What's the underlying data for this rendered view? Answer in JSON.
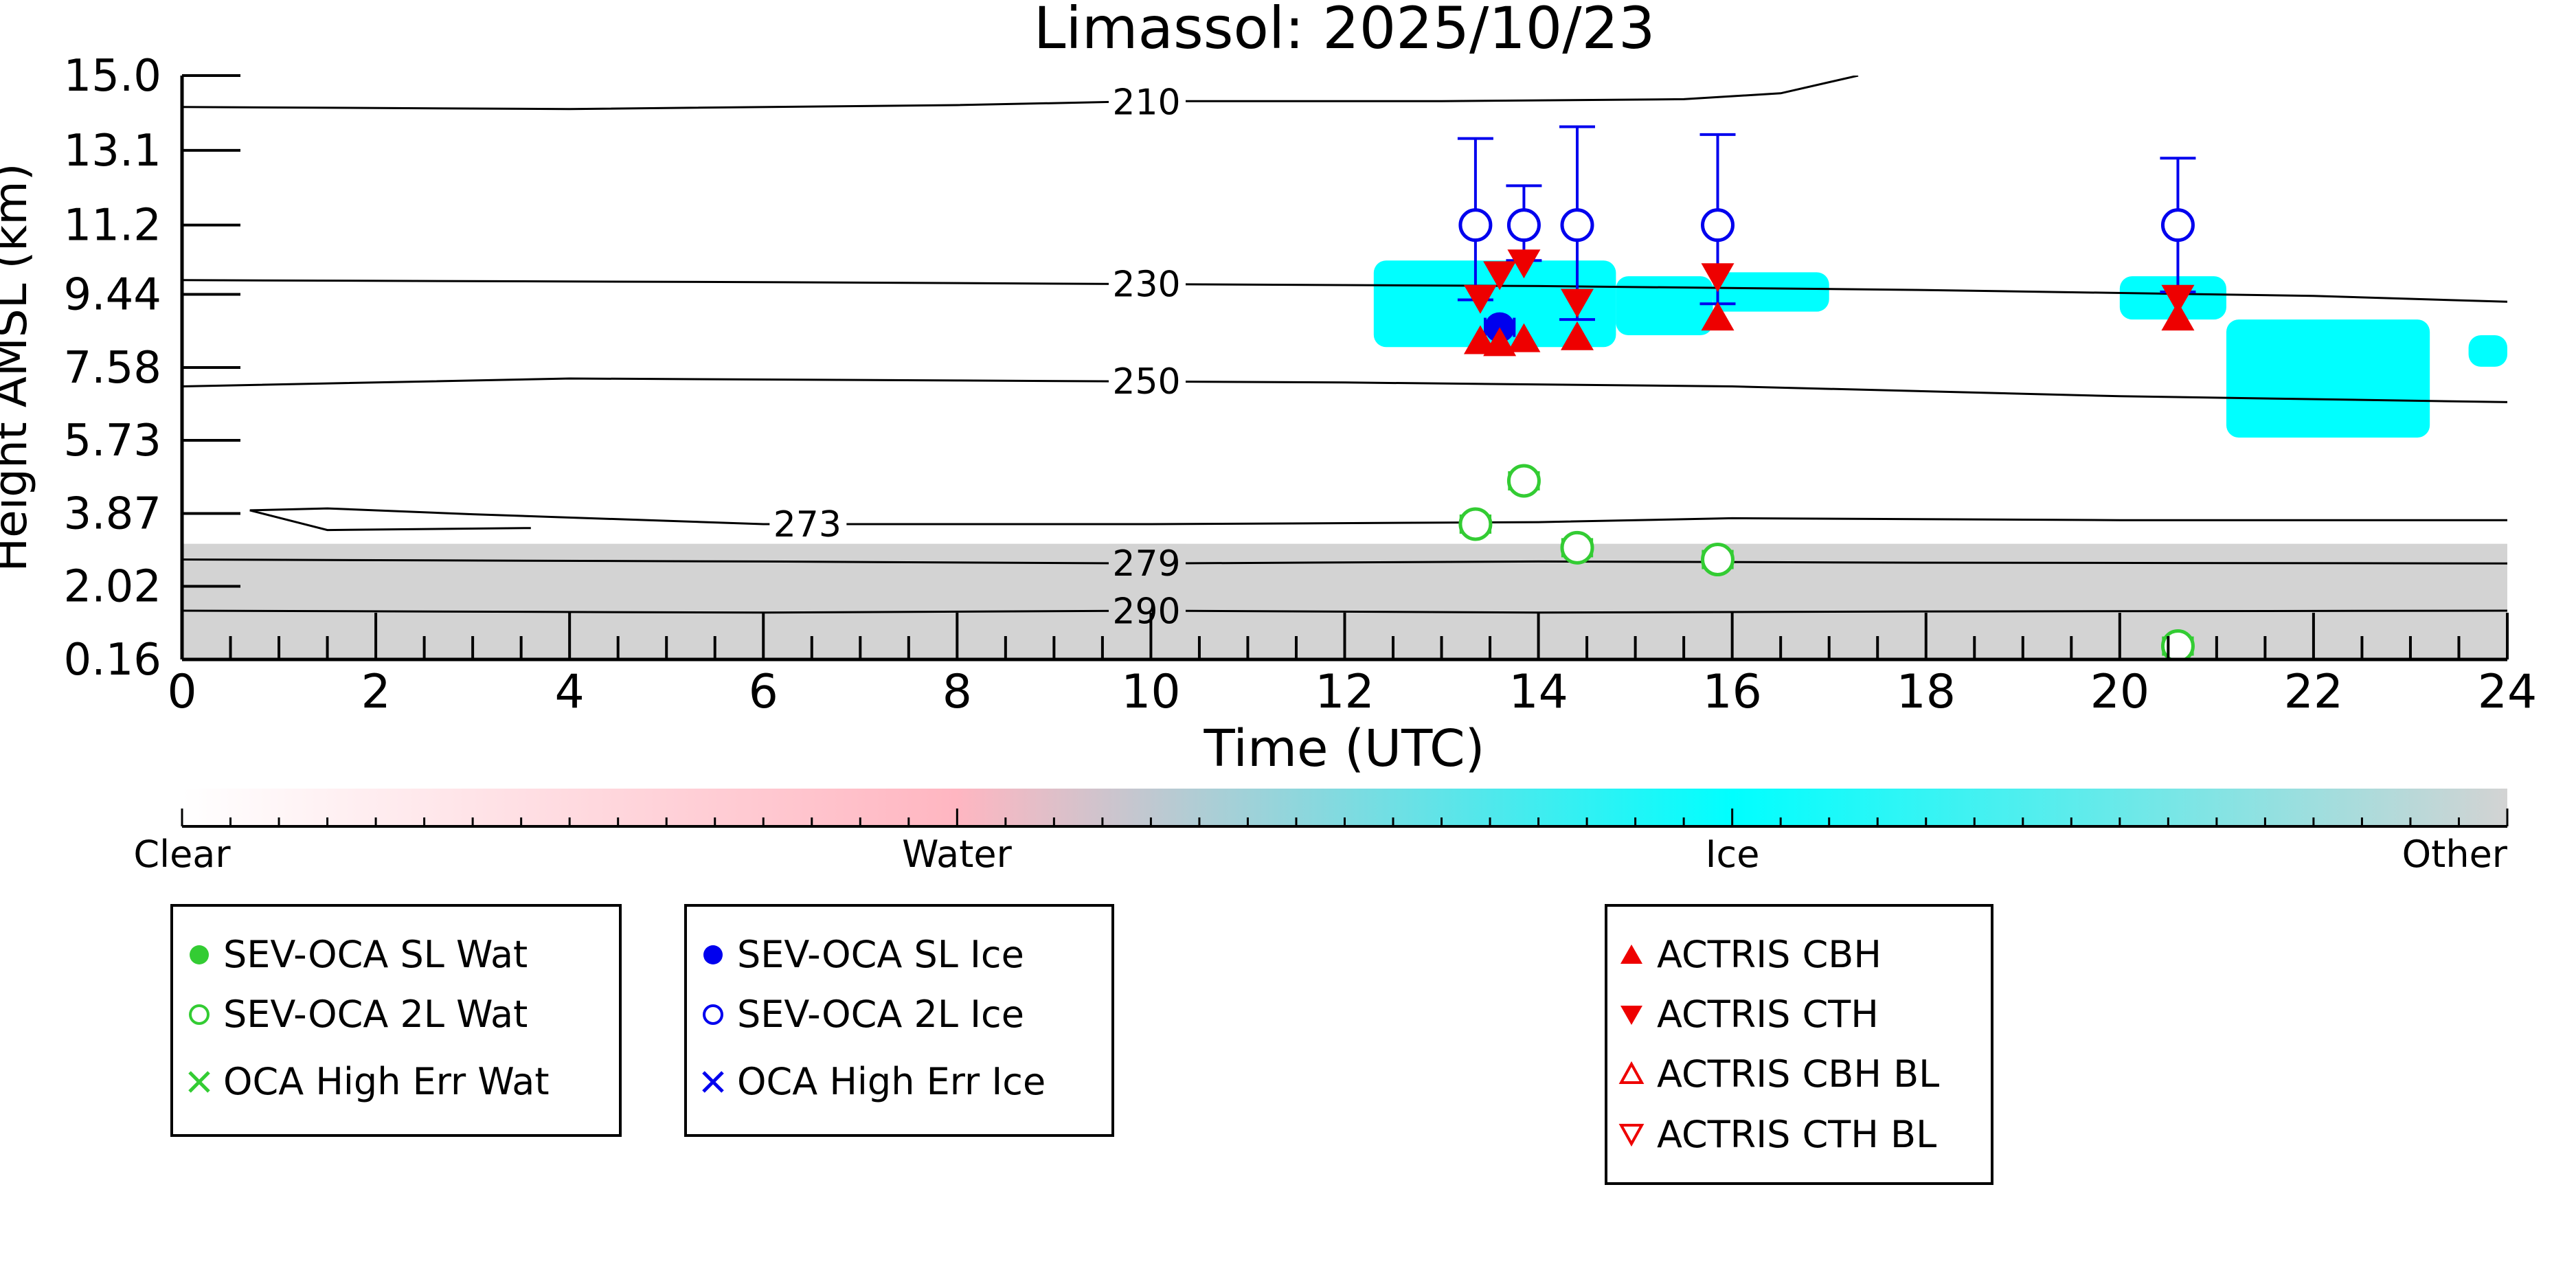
{
  "chart_data": {
    "type": "scatter",
    "title": "Limassol: 2025/10/23",
    "xlabel": "Time (UTC)",
    "ylabel": "Height AMSL (km)",
    "xlim": [
      0,
      24
    ],
    "ylim": [
      0.16,
      15.0
    ],
    "x_ticks": [
      0,
      2,
      4,
      6,
      8,
      10,
      12,
      14,
      16,
      18,
      20,
      22,
      24
    ],
    "y_ticks": [
      "0.16",
      "2.02",
      "3.87",
      "5.73",
      "7.58",
      "9.44",
      "11.2",
      "13.1",
      "15.0"
    ],
    "y_tick_values": [
      0.16,
      2.02,
      3.87,
      5.73,
      7.58,
      9.44,
      11.2,
      13.1,
      15.0
    ],
    "grid": false,
    "background": {
      "ground_layer_top_km": 3.1,
      "colors": {
        "Other": "#d3d3d3",
        "Ice": "#00ffff",
        "Water": "#ffb6c1",
        "Clear": "#ffffff"
      }
    },
    "cloud_regions": [
      {
        "class": "Ice",
        "x_range": [
          12.3,
          14.8
        ],
        "y_range": [
          8.1,
          10.3
        ]
      },
      {
        "class": "Ice",
        "x_range": [
          14.8,
          15.8
        ],
        "y_range": [
          8.4,
          9.9
        ]
      },
      {
        "class": "Ice",
        "x_range": [
          15.8,
          17.0
        ],
        "y_range": [
          9.0,
          10.0
        ]
      },
      {
        "class": "Ice",
        "x_range": [
          20.0,
          21.1
        ],
        "y_range": [
          8.8,
          9.9
        ]
      },
      {
        "class": "Ice",
        "x_range": [
          21.1,
          23.2
        ],
        "y_range": [
          5.8,
          8.8
        ]
      },
      {
        "class": "Ice",
        "x_range": [
          23.6,
          24.0
        ],
        "y_range": [
          7.6,
          8.4
        ]
      }
    ],
    "temperature_contours": [
      {
        "label": "210",
        "label_x": 9.6,
        "points": [
          [
            0,
            14.2
          ],
          [
            4,
            14.15
          ],
          [
            8,
            14.25
          ],
          [
            10,
            14.35
          ],
          [
            13,
            14.35
          ],
          [
            15.5,
            14.4
          ],
          [
            16.5,
            14.55
          ],
          [
            17.3,
            15.0
          ]
        ]
      },
      {
        "label": "230",
        "label_x": 9.6,
        "points": [
          [
            0,
            9.8
          ],
          [
            6,
            9.75
          ],
          [
            10,
            9.7
          ],
          [
            14,
            9.65
          ],
          [
            18,
            9.55
          ],
          [
            22,
            9.4
          ],
          [
            24,
            9.25
          ]
        ]
      },
      {
        "label": "250",
        "label_x": 9.6,
        "points": [
          [
            0,
            7.1
          ],
          [
            4,
            7.3
          ],
          [
            8,
            7.25
          ],
          [
            12,
            7.2
          ],
          [
            16,
            7.1
          ],
          [
            20,
            6.85
          ],
          [
            24,
            6.7
          ]
        ]
      },
      {
        "label": "273",
        "label_x": 6.1,
        "points": [
          [
            0.7,
            3.95
          ],
          [
            1.5,
            4.0
          ],
          [
            3.0,
            3.85
          ],
          [
            6.0,
            3.6
          ],
          [
            10,
            3.6
          ],
          [
            14,
            3.65
          ],
          [
            16,
            3.75
          ],
          [
            20,
            3.7
          ],
          [
            24,
            3.7
          ]
        ]
      },
      {
        "label": "",
        "label_x": null,
        "points": [
          [
            0.7,
            3.95
          ],
          [
            1.5,
            3.45
          ],
          [
            3.6,
            3.5
          ]
        ]
      },
      {
        "label": "279",
        "label_x": 9.6,
        "points": [
          [
            0,
            2.7
          ],
          [
            6,
            2.65
          ],
          [
            10,
            2.6
          ],
          [
            14,
            2.65
          ],
          [
            18,
            2.62
          ],
          [
            24,
            2.6
          ]
        ]
      },
      {
        "label": "290",
        "label_x": 9.6,
        "points": [
          [
            0,
            1.4
          ],
          [
            6,
            1.35
          ],
          [
            10,
            1.4
          ],
          [
            14,
            1.35
          ],
          [
            18,
            1.38
          ],
          [
            24,
            1.4
          ]
        ]
      }
    ],
    "series": [
      {
        "name": "SEV-OCA SL Wat",
        "marker": "filled-circle",
        "color": "#33cc33",
        "points": []
      },
      {
        "name": "SEV-OCA 2L Wat",
        "marker": "open-circle",
        "color": "#33cc33",
        "points": [
          [
            13.35,
            3.6,
            0.15
          ],
          [
            13.85,
            4.7,
            0.15
          ],
          [
            14.4,
            3.0,
            0.15
          ],
          [
            15.85,
            2.7,
            0.15
          ],
          [
            20.6,
            0.5,
            0.15
          ]
        ]
      },
      {
        "name": "OCA High Err Wat",
        "marker": "x",
        "color": "#33cc33",
        "points": []
      },
      {
        "name": "SEV-OCA SL Ice",
        "marker": "filled-circle",
        "color": "#0000ee",
        "points": [
          [
            13.6,
            8.6,
            0.15
          ]
        ]
      },
      {
        "name": "SEV-OCA 2L Ice",
        "marker": "open-circle",
        "color": "#0000ee",
        "points": [
          [
            13.35,
            11.2,
            13.4,
            9.3
          ],
          [
            13.85,
            11.2,
            12.2,
            10.3
          ],
          [
            14.4,
            11.2,
            13.7,
            8.8
          ],
          [
            15.85,
            11.2,
            13.5,
            9.2
          ],
          [
            20.6,
            11.2,
            12.9,
            9.5
          ]
        ]
      },
      {
        "name": "OCA High Err Ice",
        "marker": "x",
        "color": "#0000ee",
        "points": []
      },
      {
        "name": "ACTRIS CBH",
        "marker": "triangle-up-filled",
        "color": "#ee0000",
        "points": [
          [
            13.4,
            8.2
          ],
          [
            13.6,
            8.15
          ],
          [
            13.85,
            8.25
          ],
          [
            14.4,
            8.3
          ],
          [
            15.85,
            8.8
          ],
          [
            20.6,
            8.8
          ]
        ]
      },
      {
        "name": "ACTRIS CTH",
        "marker": "triangle-down-filled",
        "color": "#ee0000",
        "points": [
          [
            13.4,
            9.4
          ],
          [
            13.6,
            10.0
          ],
          [
            13.85,
            10.3
          ],
          [
            14.4,
            9.3
          ],
          [
            15.85,
            9.95
          ],
          [
            20.6,
            9.4
          ]
        ]
      },
      {
        "name": "ACTRIS CBH BL",
        "marker": "triangle-up-open",
        "color": "#ee0000",
        "points": []
      },
      {
        "name": "ACTRIS CTH BL",
        "marker": "triangle-down-open",
        "color": "#ee0000",
        "points": []
      }
    ],
    "colorbar": {
      "labels": [
        "Clear",
        "Water",
        "Ice",
        "Other"
      ],
      "stops": [
        "#ffffff",
        "#ffb6c1",
        "#00ffff",
        "#d3d3d3"
      ]
    },
    "legends": [
      [
        "SEV-OCA SL Wat",
        "SEV-OCA 2L Wat",
        "OCA High Err Wat"
      ],
      [
        "SEV-OCA SL Ice",
        "SEV-OCA 2L Ice",
        "OCA High Err Ice"
      ],
      [
        "ACTRIS CBH",
        "ACTRIS CTH",
        "ACTRIS CBH BL",
        "ACTRIS CTH BL"
      ]
    ]
  }
}
